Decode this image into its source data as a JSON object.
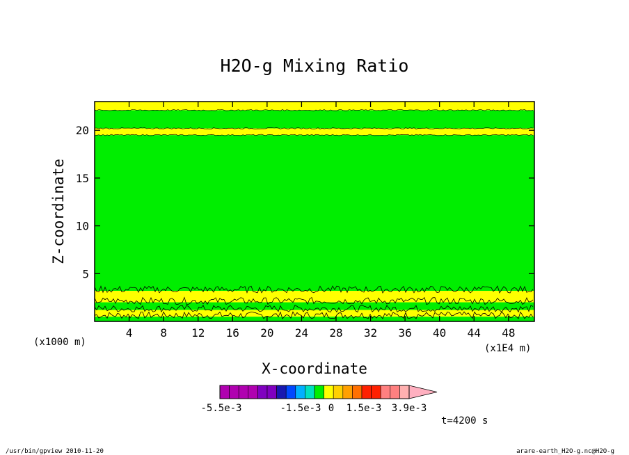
{
  "chart_data": {
    "type": "heatmap",
    "title": "H2O-g Mixing Ratio",
    "xlabel": "X-coordinate",
    "ylabel": "Z-coordinate",
    "x_units": "(x1000 m)",
    "x_scale_note": "(x1E4 m)",
    "xticks": [
      4,
      8,
      12,
      16,
      20,
      24,
      28,
      32,
      36,
      40,
      44,
      48
    ],
    "yticks": [
      5,
      10,
      15,
      20
    ],
    "xlim": [
      0,
      51
    ],
    "ylim": [
      0,
      23
    ],
    "bands": [
      {
        "z0": 0.0,
        "z1": 0.5,
        "color": "#00ee00",
        "class": "green"
      },
      {
        "z0": 0.5,
        "z1": 1.2,
        "color": "#ffff00",
        "class": "yellow"
      },
      {
        "z0": 1.2,
        "z1": 2.0,
        "color": "#00ee00",
        "class": "green"
      },
      {
        "z0": 2.0,
        "z1": 3.2,
        "color": "#ffff00",
        "class": "yellow"
      },
      {
        "z0": 3.2,
        "z1": 19.5,
        "color": "#00ee00",
        "class": "green"
      },
      {
        "z0": 19.5,
        "z1": 20.2,
        "color": "#ffff00",
        "class": "yellow"
      },
      {
        "z0": 20.2,
        "z1": 22.1,
        "color": "#00ee00",
        "class": "green"
      },
      {
        "z0": 22.1,
        "z1": 23.0,
        "color": "#ffff00",
        "class": "yellow"
      }
    ],
    "colorbar": {
      "colors": [
        "#b000b0",
        "#b000b0",
        "#b000b0",
        "#b000b0",
        "#8000c0",
        "#8000c0",
        "#1818b0",
        "#0048ff",
        "#00b0ff",
        "#00e0c0",
        "#00ee00",
        "#ffff00",
        "#ffd000",
        "#ffa000",
        "#ff7000",
        "#ff2000",
        "#ff2000",
        "#ff8080",
        "#ff8080",
        "#ffb0b0"
      ],
      "labels": [
        "-5.5e-3",
        "-1.5e-3",
        "0",
        "1.5e-3",
        "3.9e-3"
      ]
    },
    "time_label": "t=4200 s"
  },
  "footer": {
    "left": "/usr/bin/gpview  2010-11-20",
    "right": "arare-earth_H2O-g.nc@H2O-g"
  }
}
